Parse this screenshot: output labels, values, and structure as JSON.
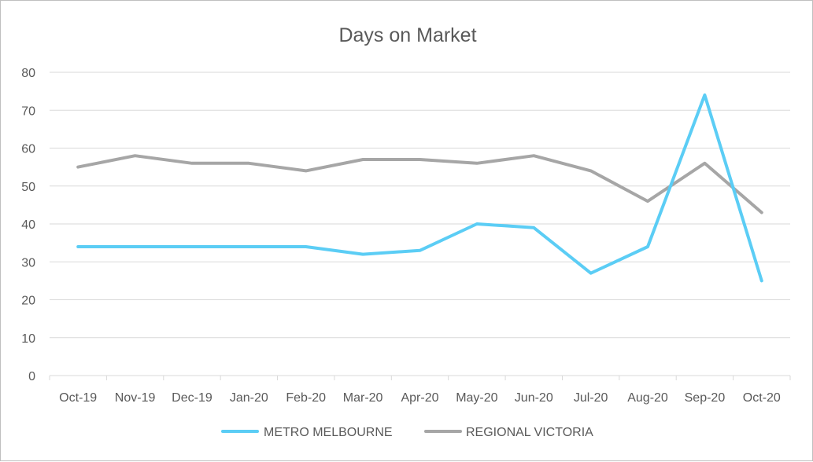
{
  "chart_data": {
    "type": "line",
    "title": "Days on Market",
    "xlabel": "",
    "ylabel": "",
    "categories": [
      "Oct-19",
      "Nov-19",
      "Dec-19",
      "Jan-20",
      "Feb-20",
      "Mar-20",
      "Apr-20",
      "May-20",
      "Jun-20",
      "Jul-20",
      "Aug-20",
      "Sep-20",
      "Oct-20"
    ],
    "ylim": [
      0,
      80
    ],
    "yticks": [
      0,
      10,
      20,
      30,
      40,
      50,
      60,
      70,
      80
    ],
    "grid": true,
    "legend_position": "bottom",
    "series": [
      {
        "name": "METRO MELBOURNE",
        "color": "#5bcdf5",
        "values": [
          34,
          34,
          34,
          34,
          34,
          32,
          33,
          40,
          39,
          27,
          34,
          74,
          25
        ]
      },
      {
        "name": "REGIONAL VICTORIA",
        "color": "#a6a6a6",
        "values": [
          55,
          58,
          56,
          56,
          54,
          57,
          57,
          56,
          58,
          54,
          46,
          56,
          43
        ]
      }
    ]
  }
}
